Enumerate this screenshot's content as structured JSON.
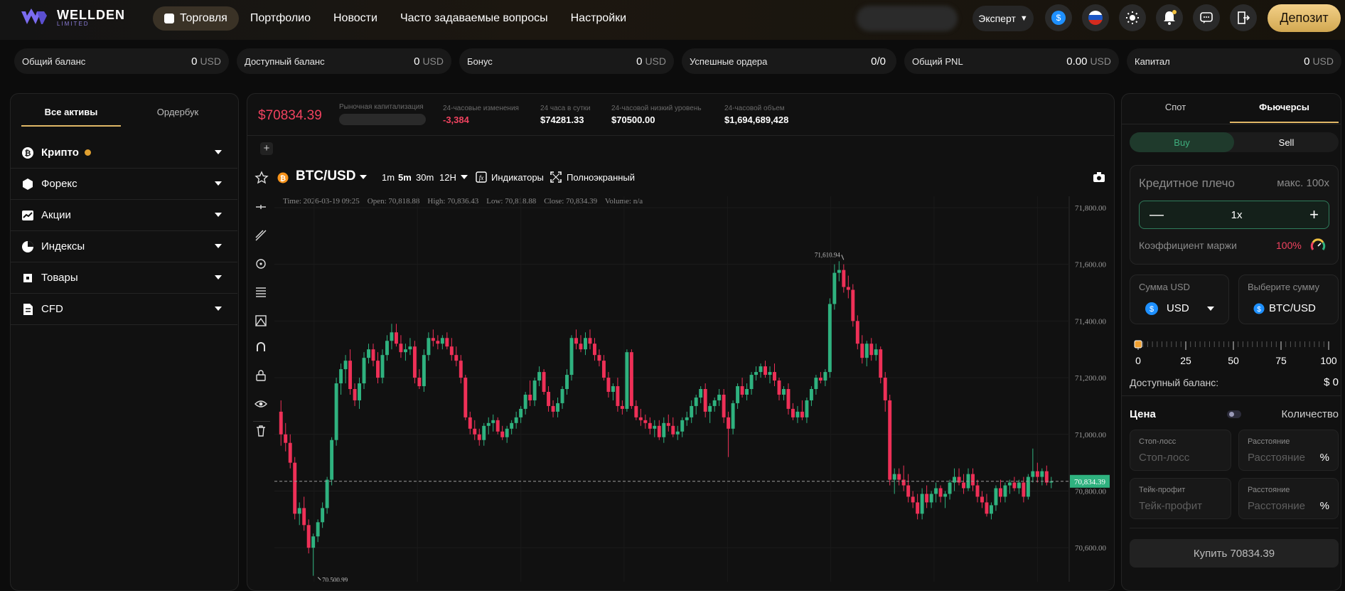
{
  "brand": {
    "name": "WELLDEN",
    "sub": "LIMITED"
  },
  "nav": {
    "items": [
      {
        "label": "Торговля",
        "active": true
      },
      {
        "label": "Портфолио"
      },
      {
        "label": "Новости"
      },
      {
        "label": "Часто задаваемые вопросы"
      },
      {
        "label": "Настройки"
      }
    ]
  },
  "header": {
    "mode": "Эксперт",
    "deposit": "Депозит",
    "accent": "#e0b766"
  },
  "stats": [
    {
      "label": "Общий баланс",
      "value": "0",
      "unit": "USD"
    },
    {
      "label": "Доступный баланс",
      "value": "0",
      "unit": "USD"
    },
    {
      "label": "Бонус",
      "value": "0",
      "unit": "USD"
    },
    {
      "label": "Успешные ордера",
      "value": "0/0",
      "unit": ""
    },
    {
      "label": "Общий PNL",
      "value": "0.00",
      "unit": "USD"
    },
    {
      "label": "Капитал",
      "value": "0",
      "unit": "USD"
    }
  ],
  "left": {
    "tabs": [
      "Все активы",
      "Ордербук"
    ],
    "assets": [
      "Крипто",
      "Форекс",
      "Акции",
      "Индексы",
      "Товары",
      "CFD"
    ]
  },
  "market": {
    "price": "$70834.39",
    "cap_label": "Рыночная капитализация",
    "change_label": "24-часовые изменения",
    "change": "-3,384",
    "high_label": "24 часа в сутки",
    "high": "$74281.33",
    "low_label": "24-часовой низкий уровень",
    "low": "$70500.00",
    "vol_label": "24-часовой объем",
    "vol": "$1,694,689,428"
  },
  "toolbar": {
    "symbol": "BTC/USD",
    "intervals": [
      "1m",
      "5m",
      "30m",
      "12H"
    ],
    "indicators": "Индикаторы",
    "fullscreen": "Полноэкранный",
    "plus": "+"
  },
  "ohlc": {
    "time": "Time: 2026-03-19 09:25",
    "open": "Open: 70,818.88",
    "high": "High: 70,836.43",
    "low": "Low: 70,818.88",
    "close": "Close: 70,834.39",
    "volume": "Volume: n/a"
  },
  "chart_data": {
    "type": "candlestick",
    "symbol": "BTC/USD",
    "ylim": [
      70480,
      71840
    ],
    "yticks": [
      71800,
      71600,
      71400,
      71200,
      71000,
      70800,
      70600
    ],
    "ytick_labels": [
      "71,800.00",
      "71,600.00",
      "71,400.00",
      "71,200.00",
      "71,000.00",
      "70,800.00",
      "70,600.00"
    ],
    "last_price": 70834.39,
    "last_price_label": "70,834.39",
    "max_label": "71,610.94",
    "max_value": 71610.94,
    "max_index": 122,
    "min_label": "70,500.99",
    "min_value": 70500.99,
    "min_index": 8,
    "colors": {
      "up": "#2fb27f",
      "down": "#ee3057"
    },
    "candles": [
      [
        71080,
        71120,
        70960,
        71000
      ],
      [
        71000,
        71040,
        70940,
        70970
      ],
      [
        70970,
        71000,
        70880,
        70900
      ],
      [
        70900,
        70920,
        70700,
        70720
      ],
      [
        70720,
        70760,
        70680,
        70740
      ],
      [
        70740,
        70780,
        70660,
        70680
      ],
      [
        70680,
        70700,
        70580,
        70600
      ],
      [
        70600,
        70650,
        70500.99,
        70640
      ],
      [
        70640,
        70700,
        70620,
        70690
      ],
      [
        70690,
        70760,
        70670,
        70740
      ],
      [
        70740,
        70850,
        70720,
        70840
      ],
      [
        70840,
        70990,
        70820,
        70980
      ],
      [
        70980,
        71200,
        70960,
        71180
      ],
      [
        71180,
        71250,
        71140,
        71230
      ],
      [
        71230,
        71280,
        71180,
        71260
      ],
      [
        71260,
        71300,
        71140,
        71160
      ],
      [
        71160,
        71180,
        71100,
        71120
      ],
      [
        71120,
        71200,
        71090,
        71180
      ],
      [
        71180,
        71290,
        71160,
        71270
      ],
      [
        71270,
        71320,
        71250,
        71300
      ],
      [
        71300,
        71320,
        71240,
        71260
      ],
      [
        71260,
        71290,
        71180,
        71200
      ],
      [
        71200,
        71300,
        71180,
        71280
      ],
      [
        71280,
        71350,
        71260,
        71330
      ],
      [
        71330,
        71390,
        71300,
        71360
      ],
      [
        71360,
        71390,
        71310,
        71320
      ],
      [
        71320,
        71350,
        71270,
        71290
      ],
      [
        71290,
        71320,
        71260,
        71300
      ],
      [
        71300,
        71340,
        71280,
        71310
      ],
      [
        71310,
        71330,
        71180,
        71200
      ],
      [
        71200,
        71230,
        71160,
        71170
      ],
      [
        71170,
        71300,
        71150,
        71280
      ],
      [
        71280,
        71360,
        71260,
        71340
      ],
      [
        71340,
        71370,
        71310,
        71330
      ],
      [
        71330,
        71350,
        71300,
        71320
      ],
      [
        71320,
        71350,
        71300,
        71340
      ],
      [
        71340,
        71360,
        71300,
        71310
      ],
      [
        71310,
        71340,
        71260,
        71280
      ],
      [
        71280,
        71310,
        71240,
        71260
      ],
      [
        71260,
        71280,
        71180,
        71200
      ],
      [
        71200,
        71210,
        71050,
        71060
      ],
      [
        71060,
        71080,
        71000,
        71020
      ],
      [
        71020,
        71050,
        70980,
        71000
      ],
      [
        71000,
        71020,
        70960,
        70980
      ],
      [
        70980,
        71040,
        70960,
        71030
      ],
      [
        71030,
        71060,
        71000,
        71040
      ],
      [
        71040,
        71070,
        71010,
        71050
      ],
      [
        71050,
        71060,
        71000,
        71010
      ],
      [
        71010,
        71030,
        70980,
        70990
      ],
      [
        70990,
        71030,
        70970,
        71020
      ],
      [
        71020,
        71050,
        71000,
        71040
      ],
      [
        71040,
        71080,
        71020,
        71060
      ],
      [
        71060,
        71100,
        71040,
        71090
      ],
      [
        71090,
        71150,
        71070,
        71140
      ],
      [
        71140,
        71190,
        71100,
        71120
      ],
      [
        71120,
        71200,
        71100,
        71190
      ],
      [
        71190,
        71240,
        71170,
        71220
      ],
      [
        71220,
        71230,
        71140,
        71150
      ],
      [
        71150,
        71170,
        71080,
        71100
      ],
      [
        71100,
        71120,
        71060,
        71080
      ],
      [
        71080,
        71130,
        71060,
        71110
      ],
      [
        71110,
        71170,
        71090,
        71160
      ],
      [
        71160,
        71230,
        71140,
        71210
      ],
      [
        71210,
        71350,
        71190,
        71340
      ],
      [
        71340,
        71370,
        71300,
        71320
      ],
      [
        71320,
        71350,
        71290,
        71300
      ],
      [
        71300,
        71360,
        71280,
        71340
      ],
      [
        71340,
        71370,
        71300,
        71320
      ],
      [
        71320,
        71340,
        71260,
        71280
      ],
      [
        71280,
        71300,
        71240,
        71260
      ],
      [
        71260,
        71280,
        71190,
        71200
      ],
      [
        71200,
        71220,
        71130,
        71150
      ],
      [
        71150,
        71180,
        71120,
        71170
      ],
      [
        71170,
        71200,
        71080,
        71100
      ],
      [
        71100,
        71120,
        71070,
        71090
      ],
      [
        71090,
        71300,
        71080,
        71290
      ],
      [
        71290,
        71300,
        71090,
        71100
      ],
      [
        71100,
        71120,
        71050,
        71060
      ],
      [
        71060,
        71090,
        71030,
        71050
      ],
      [
        71050,
        71070,
        71020,
        71040
      ],
      [
        71040,
        71060,
        71000,
        71020
      ],
      [
        71020,
        71050,
        70990,
        71030
      ],
      [
        71030,
        71050,
        70980,
        70990
      ],
      [
        70990,
        71060,
        70970,
        71040
      ],
      [
        71040,
        71070,
        71010,
        71030
      ],
      [
        71030,
        71060,
        70990,
        71000
      ],
      [
        71000,
        71030,
        70980,
        71010
      ],
      [
        71010,
        71060,
        70990,
        71050
      ],
      [
        71050,
        71080,
        71030,
        71060
      ],
      [
        71060,
        71120,
        71040,
        71100
      ],
      [
        71100,
        71140,
        71070,
        71130
      ],
      [
        71130,
        71170,
        71110,
        71160
      ],
      [
        71160,
        71180,
        71060,
        71080
      ],
      [
        71080,
        71110,
        71040,
        71100
      ],
      [
        71100,
        71130,
        71080,
        71120
      ],
      [
        71120,
        71160,
        71100,
        71140
      ],
      [
        71140,
        71160,
        71040,
        71060
      ],
      [
        71060,
        71080,
        70920,
        71020
      ],
      [
        71020,
        71120,
        71000,
        71110
      ],
      [
        71110,
        71180,
        71090,
        71170
      ],
      [
        71170,
        71200,
        71130,
        71140
      ],
      [
        71140,
        71180,
        71120,
        71160
      ],
      [
        71160,
        71220,
        71140,
        71210
      ],
      [
        71210,
        71240,
        71190,
        71220
      ],
      [
        71220,
        71250,
        71200,
        71240
      ],
      [
        71240,
        71260,
        71200,
        71210
      ],
      [
        71210,
        71240,
        71180,
        71220
      ],
      [
        71220,
        71250,
        71170,
        71190
      ],
      [
        71190,
        71200,
        71120,
        71140
      ],
      [
        71140,
        71170,
        71120,
        71160
      ],
      [
        71160,
        71180,
        71070,
        71090
      ],
      [
        71090,
        71110,
        71050,
        71060
      ],
      [
        71060,
        71100,
        71040,
        71080
      ],
      [
        71080,
        71120,
        71050,
        71060
      ],
      [
        71060,
        71130,
        71040,
        71120
      ],
      [
        71120,
        71170,
        71100,
        71160
      ],
      [
        71160,
        71210,
        71140,
        71200
      ],
      [
        71200,
        71220,
        71180,
        71190
      ],
      [
        71190,
        71230,
        71170,
        71220
      ],
      [
        71220,
        71480,
        71200,
        71460
      ],
      [
        71460,
        71600,
        71440,
        71570
      ],
      [
        71570,
        71610.94,
        71540,
        71580
      ],
      [
        71580,
        71600,
        71500,
        71520
      ],
      [
        71520,
        71560,
        71480,
        71510
      ],
      [
        71510,
        71530,
        71380,
        71400
      ],
      [
        71400,
        71420,
        71300,
        71320
      ],
      [
        71320,
        71350,
        71250,
        71270
      ],
      [
        71270,
        71330,
        71240,
        71320
      ],
      [
        71320,
        71340,
        71260,
        71280
      ],
      [
        71280,
        71320,
        71260,
        71300
      ],
      [
        71300,
        71310,
        71180,
        71200
      ],
      [
        71200,
        71220,
        71080,
        71120
      ],
      [
        71120,
        71140,
        70820,
        70840
      ],
      [
        70840,
        70880,
        70790,
        70860
      ],
      [
        70860,
        70880,
        70820,
        70840
      ],
      [
        70840,
        70890,
        70800,
        70820
      ],
      [
        70820,
        70860,
        70760,
        70780
      ],
      [
        70780,
        70800,
        70740,
        70760
      ],
      [
        70760,
        70790,
        70700,
        70720
      ],
      [
        70720,
        70810,
        70700,
        70790
      ],
      [
        70790,
        70820,
        70740,
        70760
      ],
      [
        70760,
        70800,
        70740,
        70790
      ],
      [
        70790,
        70830,
        70760,
        70810
      ],
      [
        70810,
        70820,
        70760,
        70780
      ],
      [
        70780,
        70800,
        70740,
        70790
      ],
      [
        70790,
        70840,
        70770,
        70830
      ],
      [
        70830,
        70880,
        70800,
        70850
      ],
      [
        70850,
        70880,
        70820,
        70830
      ],
      [
        70830,
        70860,
        70790,
        70810
      ],
      [
        70810,
        70880,
        70800,
        70860
      ],
      [
        70860,
        70880,
        70800,
        70820
      ],
      [
        70820,
        70840,
        70760,
        70780
      ],
      [
        70780,
        70800,
        70740,
        70760
      ],
      [
        70760,
        70790,
        70710,
        70720
      ],
      [
        70720,
        70760,
        70700,
        70750
      ],
      [
        70750,
        70820,
        70730,
        70810
      ],
      [
        70810,
        70840,
        70760,
        70780
      ],
      [
        70780,
        70830,
        70760,
        70820
      ],
      [
        70820,
        70840,
        70790,
        70830
      ],
      [
        70830,
        70850,
        70800,
        70810
      ],
      [
        70810,
        70840,
        70790,
        70830
      ],
      [
        70830,
        70850,
        70760,
        70780
      ],
      [
        70780,
        70860,
        70770,
        70850
      ],
      [
        70850,
        70950,
        70830,
        70870
      ],
      [
        70870,
        70900,
        70830,
        70850
      ],
      [
        70850,
        70880,
        70820,
        70870
      ],
      [
        70870,
        70890,
        70820,
        70830
      ],
      [
        70830,
        70850,
        70810,
        70834.39
      ]
    ]
  },
  "right": {
    "tabs": [
      "Спот",
      "Фьючерсы"
    ],
    "buy": "Buy",
    "sell": "Sell",
    "leverage_label": "Кредитное плечо",
    "leverage_max": "макс. 100x",
    "leverage_value": "1x",
    "margin_label": "Коэффициент маржи",
    "margin_value": "100%",
    "amount_label": "Сумма USD",
    "amount_currency": "USD",
    "select_label": "Выберите сумму",
    "select_value": "BTC/USD",
    "slider_marks": [
      "0",
      "25",
      "50",
      "75",
      "100"
    ],
    "available_label": "Доступный баланс:",
    "available_value": "$ 0",
    "price_label": "Цена",
    "qty_label": "Количество",
    "stoploss_label": "Стоп-лосс",
    "stoploss_placeholder": "Стоп-лосс",
    "dist_label": "Расстояние",
    "dist_placeholder": "Расстояние",
    "pct": "%",
    "takeprofit_label": "Тейк-профит",
    "takeprofit_placeholder": "Тейк-профит",
    "buy_button": "Купить 70834.39"
  }
}
